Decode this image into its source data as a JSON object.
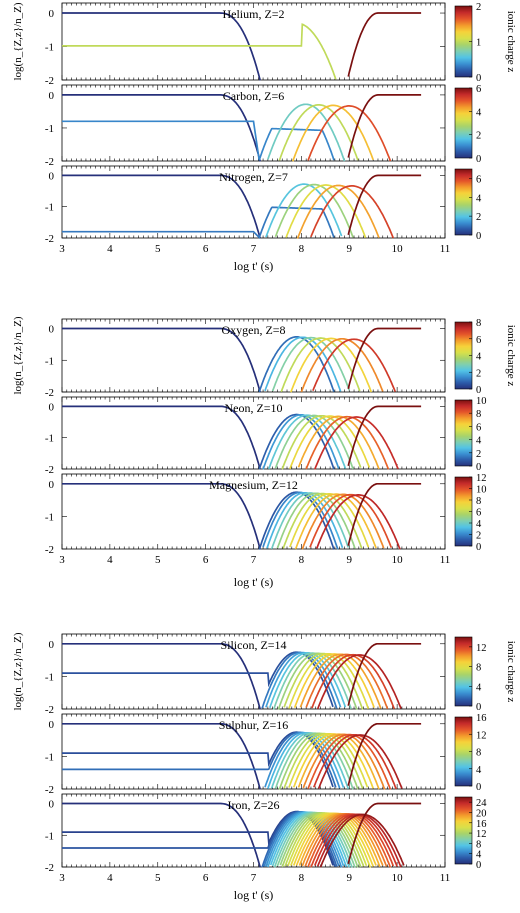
{
  "figure": {
    "colorbar_label": "ionic charge z",
    "groups": [
      {
        "ylabel": "log(n_{Z,z}/n_Z)",
        "xlabel": "log t' (s)"
      },
      {
        "ylabel": "log(n_{Z,z}/n_Z)",
        "xlabel": "log t' (s)"
      },
      {
        "ylabel": "log(n_{Z,z}/n_Z)",
        "xlabel": "log t' (s)"
      }
    ]
  },
  "chart_data": [
    {
      "type": "line",
      "element": "Helium",
      "title": "Helium, Z=2",
      "Z": 2,
      "x_range": [
        3,
        11
      ],
      "y_range": [
        -2,
        0.3
      ],
      "x_ticks": [
        3,
        4,
        5,
        6,
        7,
        8,
        9,
        10,
        11
      ],
      "y_ticks": [
        0,
        -1,
        -2
      ],
      "colorbar_ticks": [
        0,
        1,
        2
      ],
      "curve_end_x": 10.5,
      "series_z": [
        0,
        1,
        2
      ]
    },
    {
      "type": "line",
      "element": "Carbon",
      "title": "Carbon, Z=6",
      "Z": 6,
      "x_range": [
        3,
        11
      ],
      "y_range": [
        -2,
        0.3
      ],
      "x_ticks": [
        3,
        4,
        5,
        6,
        7,
        8,
        9,
        10,
        11
      ],
      "y_ticks": [
        0,
        -1,
        -2
      ],
      "colorbar_ticks": [
        0,
        2,
        4,
        6
      ],
      "curve_end_x": 10.5,
      "series_z": [
        0,
        1,
        2,
        3,
        4,
        5,
        6
      ]
    },
    {
      "type": "line",
      "element": "Nitrogen",
      "title": "Nitrogen, Z=7",
      "Z": 7,
      "x_range": [
        3,
        11
      ],
      "y_range": [
        -2,
        0.3
      ],
      "x_ticks": [
        3,
        4,
        5,
        6,
        7,
        8,
        9,
        10,
        11
      ],
      "y_ticks": [
        0,
        -1,
        -2
      ],
      "colorbar_ticks": [
        0,
        2,
        4,
        6
      ],
      "curve_end_x": 10.5,
      "series_z": [
        0,
        1,
        2,
        3,
        4,
        5,
        6,
        7
      ]
    },
    {
      "type": "line",
      "element": "Oxygen",
      "title": "Oxygen, Z=8",
      "Z": 8,
      "x_range": [
        3,
        11
      ],
      "y_range": [
        -2,
        0.3
      ],
      "x_ticks": [
        3,
        4,
        5,
        6,
        7,
        8,
        9,
        10,
        11
      ],
      "y_ticks": [
        0,
        -1,
        -2
      ],
      "colorbar_ticks": [
        0,
        2,
        4,
        6,
        8
      ],
      "curve_end_x": 10.5,
      "series_z": [
        0,
        1,
        2,
        3,
        4,
        5,
        6,
        7,
        8
      ]
    },
    {
      "type": "line",
      "element": "Neon",
      "title": "Neon, Z=10",
      "Z": 10,
      "x_range": [
        3,
        11
      ],
      "y_range": [
        -2,
        0.3
      ],
      "x_ticks": [
        3,
        4,
        5,
        6,
        7,
        8,
        9,
        10,
        11
      ],
      "y_ticks": [
        0,
        -1,
        -2
      ],
      "colorbar_ticks": [
        0,
        2,
        4,
        6,
        8,
        10
      ],
      "curve_end_x": 10.5,
      "series_z": [
        0,
        1,
        2,
        3,
        4,
        5,
        6,
        7,
        8,
        9,
        10
      ]
    },
    {
      "type": "line",
      "element": "Magnesium",
      "title": "Magnesium, Z=12",
      "Z": 12,
      "x_range": [
        3,
        11
      ],
      "y_range": [
        -2,
        0.3
      ],
      "x_ticks": [
        3,
        4,
        5,
        6,
        7,
        8,
        9,
        10,
        11
      ],
      "y_ticks": [
        0,
        -1,
        -2
      ],
      "colorbar_ticks": [
        0,
        2,
        4,
        6,
        8,
        10,
        12
      ],
      "curve_end_x": 10.5,
      "series_z": [
        0,
        1,
        2,
        3,
        4,
        5,
        6,
        7,
        8,
        9,
        10,
        11,
        12
      ]
    },
    {
      "type": "line",
      "element": "Silicon",
      "title": "Silicon, Z=14",
      "Z": 14,
      "x_range": [
        3,
        11
      ],
      "y_range": [
        -2,
        0.3
      ],
      "x_ticks": [
        3,
        4,
        5,
        6,
        7,
        8,
        9,
        10,
        11
      ],
      "y_ticks": [
        0,
        -1,
        -2
      ],
      "colorbar_ticks": [
        0,
        4,
        8,
        12
      ],
      "curve_end_x": 10.5,
      "series_z": [
        0,
        1,
        2,
        3,
        4,
        5,
        6,
        7,
        8,
        9,
        10,
        11,
        12,
        13,
        14
      ]
    },
    {
      "type": "line",
      "element": "Sulphur",
      "title": "Sulphur, Z=16",
      "Z": 16,
      "x_range": [
        3,
        11
      ],
      "y_range": [
        -2,
        0.3
      ],
      "x_ticks": [
        3,
        4,
        5,
        6,
        7,
        8,
        9,
        10,
        11
      ],
      "y_ticks": [
        0,
        -1,
        -2
      ],
      "colorbar_ticks": [
        0,
        4,
        8,
        12,
        16
      ],
      "curve_end_x": 10.5,
      "series_z": [
        0,
        1,
        2,
        3,
        4,
        5,
        6,
        7,
        8,
        9,
        10,
        11,
        12,
        13,
        14,
        15,
        16
      ]
    },
    {
      "type": "line",
      "element": "Iron",
      "title": "Iron, Z=26",
      "Z": 26,
      "x_range": [
        3,
        11
      ],
      "y_range": [
        -2,
        0.3
      ],
      "x_ticks": [
        3,
        4,
        5,
        6,
        7,
        8,
        9,
        10,
        11
      ],
      "y_ticks": [
        0,
        -1,
        -2
      ],
      "colorbar_ticks": [
        0,
        4,
        8,
        12,
        16,
        20,
        24
      ],
      "curve_end_x": 10.5,
      "series_z": [
        0,
        1,
        2,
        3,
        4,
        5,
        6,
        7,
        8,
        9,
        10,
        11,
        12,
        13,
        14,
        15,
        16,
        17,
        18,
        19,
        20,
        21,
        22,
        23,
        24,
        25,
        26
      ]
    }
  ],
  "colormap": [
    "#26307a",
    "#2c5aa8",
    "#3a8fd1",
    "#52c3e6",
    "#7fcfb0",
    "#a8d36a",
    "#d8e04a",
    "#f6d23a",
    "#f39a2c",
    "#e4552a",
    "#c42a2a",
    "#7a1010"
  ]
}
